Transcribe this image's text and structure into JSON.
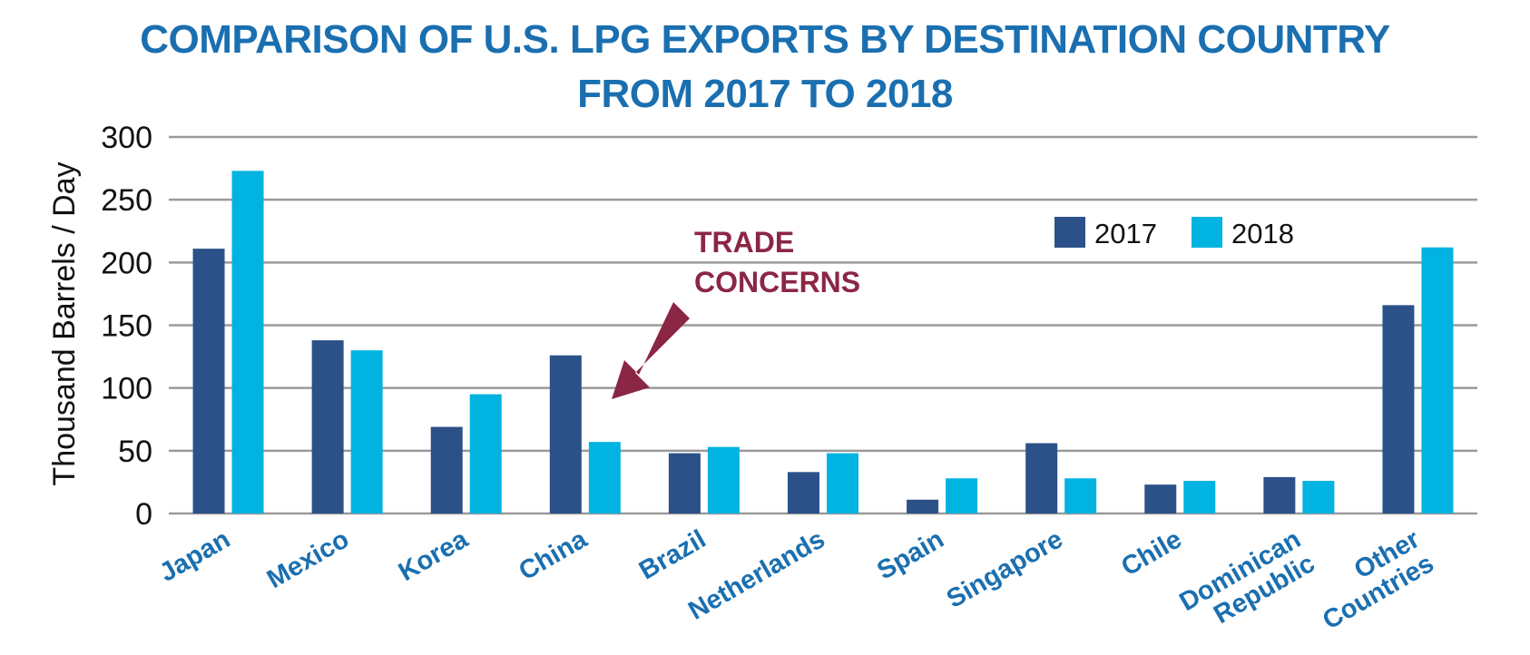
{
  "title_lines": [
    "COMPARISON OF U.S. LPG EXPORTS BY DESTINATION COUNTRY",
    "FROM 2017 TO 2018"
  ],
  "colors": {
    "title": "#1a6fb0",
    "s2017": "#2c5189",
    "s2018": "#00b3e0",
    "annotation": "#8b2645",
    "grid": "#9a9a9a"
  },
  "chart_data": {
    "type": "bar",
    "title": "COMPARISON OF U.S. LPG EXPORTS BY DESTINATION COUNTRY FROM 2017 TO 2018",
    "xlabel": "",
    "ylabel": "Thousand Barrels / Day",
    "ylim": [
      0,
      300
    ],
    "yticks": [
      0,
      50,
      100,
      150,
      200,
      250,
      300
    ],
    "grid": true,
    "legend_position": "top-right",
    "categories": [
      [
        "Japan"
      ],
      [
        "Mexico"
      ],
      [
        "Korea"
      ],
      [
        "China"
      ],
      [
        "Brazil"
      ],
      [
        "Netherlands"
      ],
      [
        "Spain"
      ],
      [
        "Singapore"
      ],
      [
        "Chile"
      ],
      [
        "Dominican",
        "Republic"
      ],
      [
        "Other",
        "Countries"
      ]
    ],
    "series": [
      {
        "name": "2017",
        "values": [
          211,
          138,
          69,
          126,
          48,
          33,
          11,
          56,
          23,
          29,
          166
        ]
      },
      {
        "name": "2018",
        "values": [
          273,
          130,
          95,
          57,
          53,
          48,
          28,
          28,
          26,
          26,
          212
        ]
      }
    ],
    "annotations": [
      {
        "text_lines": [
          "TRADE",
          "CONCERNS"
        ],
        "points_to": "China 2018"
      }
    ]
  }
}
